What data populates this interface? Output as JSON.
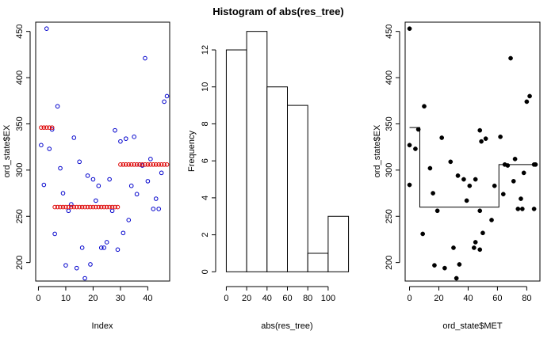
{
  "figure": {
    "title": "Histogram of abs(res_tree)"
  },
  "chart_data": [
    {
      "type": "scatter",
      "title": "",
      "xlabel": "Index",
      "ylabel": "ord_state$EX",
      "xlim": [
        -1,
        48
      ],
      "ylim": [
        180,
        460
      ],
      "xticks": [
        0,
        10,
        20,
        30,
        40
      ],
      "yticks": [
        200,
        250,
        300,
        350,
        400,
        450
      ],
      "grid": false,
      "series": [
        {
          "marker": "open-circle",
          "color": "#0000cc",
          "x": [
            1,
            2,
            3,
            4,
            5,
            6,
            7,
            8,
            9,
            10,
            11,
            12,
            13,
            14,
            15,
            16,
            17,
            18,
            19,
            20,
            21,
            22,
            23,
            24,
            25,
            26,
            27,
            28,
            29,
            30,
            31,
            32,
            33,
            34,
            35,
            36,
            37,
            38,
            39,
            40,
            41,
            42,
            43,
            44,
            45,
            46,
            47
          ],
          "y": [
            327,
            284,
            453,
            323,
            344,
            231,
            369,
            302,
            275,
            197,
            256,
            263,
            335,
            194,
            309,
            216,
            183,
            294,
            198,
            290,
            267,
            283,
            216,
            216,
            222,
            290,
            256,
            343,
            214,
            331,
            232,
            334,
            246,
            283,
            336,
            274,
            306,
            305,
            421,
            288,
            312,
            258,
            269,
            258,
            297,
            374,
            380
          ]
        },
        {
          "marker": "open-circle",
          "color": "#dd0000",
          "x": [
            1,
            2,
            3,
            4,
            5,
            6,
            7,
            8,
            9,
            10,
            11,
            12,
            13,
            14,
            15,
            16,
            17,
            18,
            19,
            20,
            21,
            22,
            23,
            24,
            25,
            26,
            27,
            28,
            29,
            30,
            31,
            32,
            33,
            34,
            35,
            36,
            37,
            38,
            39,
            40,
            41,
            42,
            43,
            44,
            45,
            46,
            47
          ],
          "y": [
            346,
            346,
            346,
            346,
            346,
            260,
            260,
            260,
            260,
            260,
            260,
            260,
            260,
            260,
            260,
            260,
            260,
            260,
            260,
            260,
            260,
            260,
            260,
            260,
            260,
            260,
            260,
            260,
            260,
            306,
            306,
            306,
            306,
            306,
            306,
            306,
            306,
            306,
            306,
            306,
            306,
            306,
            306,
            306,
            306,
            306,
            306
          ]
        }
      ]
    },
    {
      "type": "bar",
      "subtype": "histogram",
      "title": "Histogram of abs(res_tree)",
      "xlabel": "abs(res_tree)",
      "ylabel": "Frequency",
      "breaks": [
        0,
        20,
        40,
        60,
        80,
        100,
        120
      ],
      "values": [
        12,
        13,
        10,
        9,
        1,
        3
      ],
      "xlim": [
        0,
        120
      ],
      "ylim": [
        0,
        13
      ],
      "xticks": [
        0,
        20,
        40,
        60,
        80,
        100
      ],
      "yticks": [
        0,
        2,
        4,
        6,
        8,
        10,
        12
      ],
      "fill": "#ffffff",
      "grid": false
    },
    {
      "type": "scatter",
      "title": "",
      "xlabel": "ord_state$MET",
      "ylabel": "ord_state$EX",
      "xlim": [
        -3,
        89
      ],
      "ylim": [
        180,
        460
      ],
      "xticks": [
        0,
        20,
        40,
        60,
        80
      ],
      "yticks": [
        200,
        250,
        300,
        350,
        400,
        450
      ],
      "grid": false,
      "series": [
        {
          "marker": "filled-circle",
          "color": "#000000",
          "x": [
            0,
            0,
            0,
            4,
            6,
            9,
            10,
            14,
            16,
            17,
            19,
            22,
            24,
            28,
            30,
            32,
            33,
            34,
            37,
            39,
            41,
            44,
            45,
            45,
            48,
            48,
            48,
            49,
            50,
            52,
            56,
            58,
            62,
            64,
            65,
            67,
            69,
            71,
            72,
            74,
            76,
            77,
            78,
            80,
            82,
            85,
            85,
            86
          ],
          "y": [
            453,
            327,
            284,
            323,
            344,
            231,
            369,
            302,
            275,
            197,
            256,
            335,
            194,
            309,
            216,
            183,
            294,
            198,
            290,
            267,
            283,
            216,
            222,
            290,
            256,
            343,
            214,
            331,
            232,
            334,
            246,
            283,
            336,
            274,
            306,
            305,
            421,
            288,
            312,
            258,
            269,
            258,
            297,
            374,
            380,
            306,
            258,
            306
          ]
        }
      ],
      "step_line": {
        "color": "#000000",
        "x": [
          0,
          7,
          7,
          61,
          61,
          86
        ],
        "y": [
          346,
          346,
          260,
          260,
          306,
          306
        ]
      }
    }
  ]
}
